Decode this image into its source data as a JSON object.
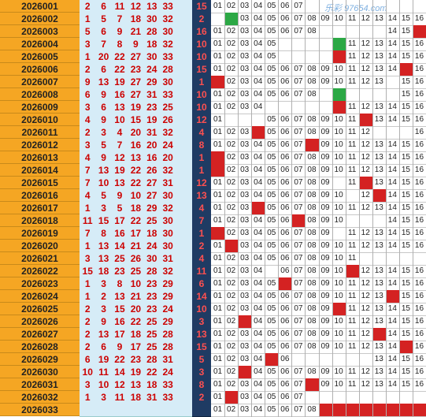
{
  "watermark": "乐彩 97654.com",
  "rows": [
    {
      "period": "2026001",
      "nums": [
        "2",
        "6",
        "11",
        "12",
        "13",
        "33"
      ],
      "blue": "15",
      "cells": [
        "01",
        "02",
        "03",
        "04",
        "05",
        "06",
        "07",
        "",
        "",
        "",
        "",
        "",
        "",
        "",
        "",
        ""
      ],
      "marks": {}
    },
    {
      "period": "2026002",
      "nums": [
        "1",
        "5",
        "7",
        "18",
        "30",
        "32"
      ],
      "blue": "2",
      "cells": [
        "",
        "",
        "03",
        "04",
        "05",
        "06",
        "07",
        "08",
        "09",
        "10",
        "11",
        "12",
        "13",
        "14",
        "15",
        "16"
      ],
      "marks": {
        "2": "green"
      }
    },
    {
      "period": "2026003",
      "nums": [
        "5",
        "6",
        "9",
        "21",
        "28",
        "30"
      ],
      "blue": "16",
      "cells": [
        "01",
        "02",
        "03",
        "04",
        "05",
        "06",
        "07",
        "08",
        "",
        "",
        "",
        "",
        "",
        "14",
        "15",
        "16"
      ],
      "marks": {
        "16": "red"
      }
    },
    {
      "period": "2026004",
      "nums": [
        "3",
        "7",
        "8",
        "9",
        "18",
        "32"
      ],
      "blue": "10",
      "cells": [
        "01",
        "02",
        "03",
        "04",
        "05",
        "",
        "",
        "",
        "",
        "",
        "11",
        "12",
        "13",
        "14",
        "15",
        "16"
      ],
      "marks": {
        "10": "green"
      }
    },
    {
      "period": "2026005",
      "nums": [
        "1",
        "20",
        "22",
        "27",
        "30",
        "33"
      ],
      "blue": "10",
      "cells": [
        "01",
        "02",
        "03",
        "04",
        "05",
        "",
        "",
        "",
        "",
        "",
        "11",
        "12",
        "13",
        "14",
        "15",
        "16"
      ],
      "marks": {
        "10": "red"
      }
    },
    {
      "period": "2026006",
      "nums": [
        "2",
        "6",
        "22",
        "23",
        "24",
        "28"
      ],
      "blue": "15",
      "cells": [
        "01",
        "02",
        "03",
        "04",
        "05",
        "06",
        "07",
        "08",
        "09",
        "10",
        "11",
        "12",
        "13",
        "14",
        "",
        "16"
      ],
      "marks": {
        "15": "red"
      }
    },
    {
      "period": "2026007",
      "nums": [
        "9",
        "13",
        "19",
        "27",
        "29",
        "30"
      ],
      "blue": "1",
      "cells": [
        "",
        "02",
        "03",
        "04",
        "05",
        "06",
        "07",
        "08",
        "09",
        "10",
        "11",
        "12",
        "13",
        "",
        "15",
        "16"
      ],
      "marks": {
        "1": "red"
      }
    },
    {
      "period": "2026008",
      "nums": [
        "6",
        "9",
        "16",
        "27",
        "31",
        "33"
      ],
      "blue": "10",
      "cells": [
        "01",
        "02",
        "03",
        "04",
        "05",
        "06",
        "07",
        "08",
        "",
        "",
        "",
        "",
        "",
        "",
        "15",
        "16"
      ],
      "marks": {
        "10": "green"
      }
    },
    {
      "period": "2026009",
      "nums": [
        "3",
        "6",
        "13",
        "19",
        "23",
        "25"
      ],
      "blue": "10",
      "cells": [
        "01",
        "02",
        "03",
        "04",
        "",
        "",
        "",
        "",
        "",
        "",
        "11",
        "12",
        "13",
        "14",
        "15",
        "16"
      ],
      "marks": {
        "10": "red"
      }
    },
    {
      "period": "2026010",
      "nums": [
        "4",
        "9",
        "10",
        "15",
        "19",
        "26"
      ],
      "blue": "12",
      "cells": [
        "01",
        "",
        "",
        "",
        "05",
        "06",
        "07",
        "08",
        "09",
        "10",
        "11",
        "",
        "13",
        "14",
        "15",
        "16"
      ],
      "marks": {
        "12": "red"
      }
    },
    {
      "period": "2026011",
      "nums": [
        "2",
        "3",
        "4",
        "20",
        "31",
        "32"
      ],
      "blue": "4",
      "cells": [
        "01",
        "02",
        "03",
        "",
        "05",
        "06",
        "07",
        "08",
        "09",
        "10",
        "11",
        "12",
        "",
        "",
        "",
        "16"
      ],
      "marks": {
        "4": "red"
      }
    },
    {
      "period": "2026012",
      "nums": [
        "3",
        "5",
        "7",
        "16",
        "20",
        "24"
      ],
      "blue": "8",
      "cells": [
        "01",
        "02",
        "03",
        "04",
        "05",
        "06",
        "07",
        "",
        "09",
        "10",
        "11",
        "12",
        "13",
        "14",
        "15",
        "16"
      ],
      "marks": {
        "8": "red"
      }
    },
    {
      "period": "2026013",
      "nums": [
        "4",
        "9",
        "12",
        "13",
        "16",
        "20"
      ],
      "blue": "1",
      "cells": [
        "",
        "02",
        "03",
        "04",
        "05",
        "06",
        "07",
        "08",
        "09",
        "10",
        "11",
        "12",
        "13",
        "14",
        "15",
        "16"
      ],
      "marks": {
        "1": "red"
      }
    },
    {
      "period": "2026014",
      "nums": [
        "7",
        "13",
        "19",
        "22",
        "26",
        "32"
      ],
      "blue": "1",
      "cells": [
        "",
        "02",
        "03",
        "04",
        "05",
        "06",
        "07",
        "08",
        "09",
        "10",
        "11",
        "12",
        "13",
        "14",
        "15",
        "16"
      ],
      "marks": {
        "1": "red"
      }
    },
    {
      "period": "2026015",
      "nums": [
        "7",
        "10",
        "13",
        "22",
        "27",
        "31"
      ],
      "blue": "12",
      "cells": [
        "01",
        "02",
        "03",
        "04",
        "05",
        "06",
        "07",
        "08",
        "09",
        "",
        "11",
        "",
        "13",
        "14",
        "15",
        "16"
      ],
      "marks": {
        "12": "red"
      }
    },
    {
      "period": "2026016",
      "nums": [
        "4",
        "5",
        "9",
        "10",
        "27",
        "30"
      ],
      "blue": "13",
      "cells": [
        "01",
        "02",
        "03",
        "04",
        "05",
        "06",
        "07",
        "08",
        "09",
        "10",
        "",
        "12",
        "",
        "14",
        "15",
        "16"
      ],
      "marks": {
        "13": "red"
      }
    },
    {
      "period": "2026017",
      "nums": [
        "1",
        "3",
        "5",
        "18",
        "29",
        "32"
      ],
      "blue": "4",
      "cells": [
        "01",
        "02",
        "03",
        "",
        "05",
        "06",
        "07",
        "08",
        "09",
        "10",
        "11",
        "12",
        "13",
        "14",
        "15",
        "16"
      ],
      "marks": {
        "4": "red"
      }
    },
    {
      "period": "2026018",
      "nums": [
        "11",
        "15",
        "17",
        "22",
        "25",
        "30"
      ],
      "blue": "7",
      "cells": [
        "01",
        "02",
        "03",
        "04",
        "05",
        "06",
        "",
        "08",
        "09",
        "10",
        "",
        "",
        "",
        "14",
        "15",
        "16"
      ],
      "marks": {
        "7": "red"
      }
    },
    {
      "period": "2026019",
      "nums": [
        "7",
        "8",
        "16",
        "17",
        "18",
        "30"
      ],
      "blue": "1",
      "cells": [
        "",
        "02",
        "03",
        "04",
        "05",
        "06",
        "07",
        "08",
        "09",
        "",
        "11",
        "12",
        "13",
        "14",
        "15",
        "16"
      ],
      "marks": {
        "1": "red"
      }
    },
    {
      "period": "2026020",
      "nums": [
        "1",
        "13",
        "14",
        "21",
        "24",
        "30"
      ],
      "blue": "2",
      "cells": [
        "01",
        "",
        "03",
        "04",
        "05",
        "06",
        "07",
        "08",
        "09",
        "10",
        "11",
        "12",
        "13",
        "14",
        "15",
        "16"
      ],
      "marks": {
        "2": "red"
      }
    },
    {
      "period": "2026021",
      "nums": [
        "3",
        "13",
        "25",
        "26",
        "30",
        "31"
      ],
      "blue": "4",
      "cells": [
        "01",
        "02",
        "03",
        "04",
        "05",
        "06",
        "07",
        "08",
        "09",
        "10",
        "11",
        "",
        "",
        "",
        "",
        ""
      ],
      "marks": {}
    },
    {
      "period": "2026022",
      "nums": [
        "15",
        "18",
        "23",
        "25",
        "28",
        "32"
      ],
      "blue": "11",
      "cells": [
        "01",
        "02",
        "03",
        "04",
        "",
        "06",
        "07",
        "08",
        "09",
        "10",
        "",
        "12",
        "13",
        "14",
        "15",
        "16"
      ],
      "marks": {
        "11": "red"
      }
    },
    {
      "period": "2026023",
      "nums": [
        "1",
        "3",
        "8",
        "10",
        "23",
        "29"
      ],
      "blue": "6",
      "cells": [
        "01",
        "02",
        "03",
        "04",
        "05",
        "",
        "07",
        "08",
        "09",
        "10",
        "11",
        "12",
        "13",
        "14",
        "15",
        "16"
      ],
      "marks": {
        "6": "red"
      }
    },
    {
      "period": "2026024",
      "nums": [
        "1",
        "2",
        "13",
        "21",
        "23",
        "29"
      ],
      "blue": "14",
      "cells": [
        "01",
        "02",
        "03",
        "04",
        "05",
        "06",
        "07",
        "08",
        "09",
        "10",
        "11",
        "12",
        "13",
        "",
        "15",
        "16"
      ],
      "marks": {
        "14": "red"
      }
    },
    {
      "period": "2026025",
      "nums": [
        "2",
        "3",
        "15",
        "20",
        "23",
        "24"
      ],
      "blue": "10",
      "cells": [
        "01",
        "02",
        "03",
        "04",
        "05",
        "06",
        "07",
        "08",
        "09",
        "",
        "11",
        "12",
        "13",
        "14",
        "15",
        "16"
      ],
      "marks": {
        "10": "red"
      }
    },
    {
      "period": "2026026",
      "nums": [
        "2",
        "9",
        "16",
        "22",
        "25",
        "29"
      ],
      "blue": "3",
      "cells": [
        "01",
        "02",
        "",
        "04",
        "05",
        "06",
        "07",
        "08",
        "09",
        "10",
        "11",
        "12",
        "13",
        "14",
        "15",
        "16"
      ],
      "marks": {
        "3": "red"
      }
    },
    {
      "period": "2026027",
      "nums": [
        "2",
        "13",
        "17",
        "18",
        "25",
        "28"
      ],
      "blue": "13",
      "cells": [
        "01",
        "02",
        "03",
        "04",
        "05",
        "06",
        "07",
        "08",
        "09",
        "10",
        "11",
        "12",
        "",
        "14",
        "15",
        "16"
      ],
      "marks": {
        "13": "red"
      }
    },
    {
      "period": "2026028",
      "nums": [
        "2",
        "6",
        "9",
        "17",
        "25",
        "28"
      ],
      "blue": "15",
      "cells": [
        "01",
        "02",
        "03",
        "04",
        "05",
        "06",
        "07",
        "08",
        "09",
        "10",
        "11",
        "12",
        "13",
        "14",
        "",
        "16"
      ],
      "marks": {
        "15": "red"
      }
    },
    {
      "period": "2026029",
      "nums": [
        "6",
        "19",
        "22",
        "23",
        "28",
        "31"
      ],
      "blue": "5",
      "cells": [
        "01",
        "02",
        "03",
        "04",
        "",
        "06",
        "",
        "",
        "",
        "",
        "",
        "",
        "13",
        "14",
        "15",
        "16"
      ],
      "marks": {
        "5": "red"
      }
    },
    {
      "period": "2026030",
      "nums": [
        "10",
        "11",
        "14",
        "19",
        "22",
        "24"
      ],
      "blue": "3",
      "cells": [
        "01",
        "02",
        "",
        "04",
        "05",
        "06",
        "07",
        "08",
        "09",
        "10",
        "11",
        "12",
        "13",
        "14",
        "15",
        "16"
      ],
      "marks": {
        "3": "red"
      }
    },
    {
      "period": "2026031",
      "nums": [
        "3",
        "10",
        "12",
        "13",
        "18",
        "33"
      ],
      "blue": "8",
      "cells": [
        "01",
        "02",
        "03",
        "04",
        "05",
        "06",
        "07",
        "",
        "09",
        "10",
        "11",
        "12",
        "13",
        "14",
        "15",
        "16"
      ],
      "marks": {
        "8": "red"
      }
    },
    {
      "period": "2026032",
      "nums": [
        "1",
        "3",
        "11",
        "18",
        "31",
        "33"
      ],
      "blue": "2",
      "cells": [
        "01",
        "",
        "03",
        "04",
        "05",
        "06",
        "07",
        "",
        "",
        "",
        "",
        "",
        "",
        "",
        "",
        ""
      ],
      "marks": {
        "2": "red"
      }
    },
    {
      "period": "2026033",
      "nums": [
        "",
        "",
        "",
        "",
        "",
        ""
      ],
      "blue": "",
      "cells": [
        "01",
        "02",
        "03",
        "04",
        "05",
        "06",
        "07",
        "08",
        "",
        "",
        "",
        "",
        "",
        "",
        "",
        ""
      ],
      "marks": {
        "9": "red",
        "10": "red",
        "11": "red",
        "12": "red",
        "13": "red",
        "14": "red",
        "15": "red",
        "16": "red"
      }
    }
  ],
  "colors": {
    "period_bg": "#f5a623",
    "nums_bg": "#d6ecf7",
    "blue_bg": "#1f3b63",
    "red_mark": "#d42222",
    "green_mark": "#2ca845"
  }
}
